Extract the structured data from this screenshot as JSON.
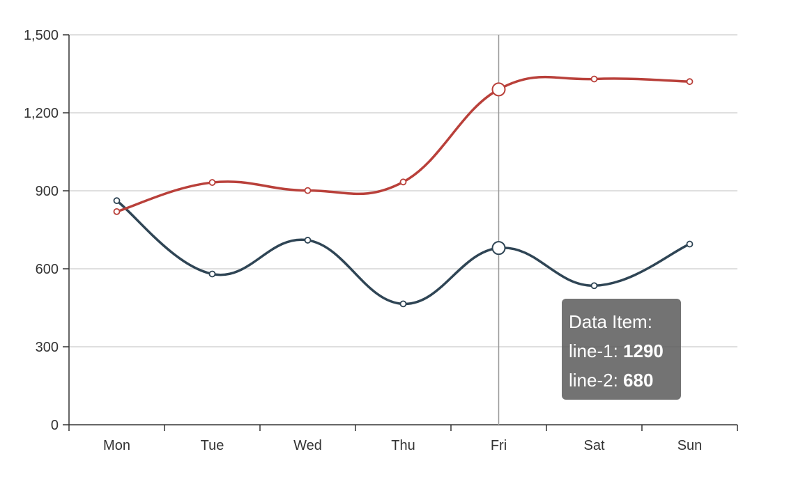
{
  "chart_data": {
    "type": "line",
    "smooth": true,
    "categories": [
      "Mon",
      "Tue",
      "Wed",
      "Thu",
      "Fri",
      "Sat",
      "Sun"
    ],
    "series": [
      {
        "name": "line-1",
        "color": "#b9403a",
        "values": [
          820,
          932,
          901,
          934,
          1290,
          1330,
          1320
        ]
      },
      {
        "name": "line-2",
        "color": "#2f4555",
        "values": [
          862,
          580,
          710,
          465,
          680,
          535,
          695
        ]
      }
    ],
    "ylim": [
      0,
      1500
    ],
    "yticks": [
      "0",
      "300",
      "600",
      "900",
      "1,200",
      "1,500"
    ],
    "ytick_values": [
      0,
      300,
      600,
      900,
      1200,
      1500
    ],
    "grid": true,
    "highlighted_category": "Fri"
  },
  "tooltip": {
    "title": "Data Item:",
    "rows": [
      {
        "label": "line-1: ",
        "value": "1290"
      },
      {
        "label": "line-2: ",
        "value": "680"
      }
    ]
  }
}
